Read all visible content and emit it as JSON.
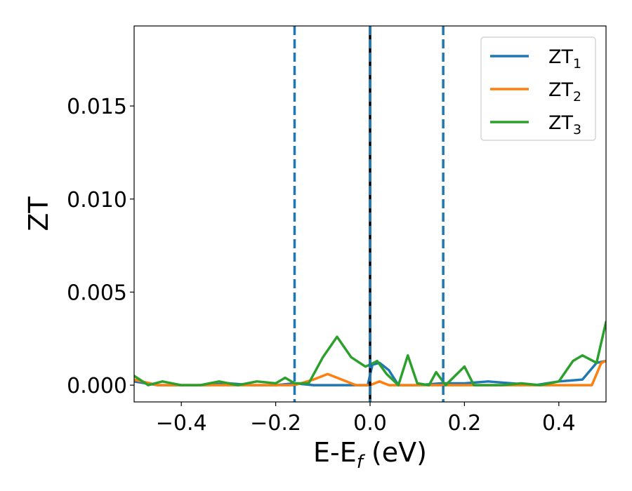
{
  "chart_data": {
    "type": "line",
    "xlabel": "E-E",
    "xlabel_subscript": "f",
    "xlabel_unit": "(eV)",
    "ylabel": "ZT",
    "xlim": [
      -0.5,
      0.5
    ],
    "ylim": [
      -0.0009,
      0.0193
    ],
    "xticks": [
      -0.4,
      -0.2,
      0.0,
      0.2,
      0.4
    ],
    "xtick_labels": [
      "−0.4",
      "−0.2",
      "0.0",
      "0.2",
      "0.4"
    ],
    "yticks": [
      0.0,
      0.005,
      0.01,
      0.015
    ],
    "ytick_labels": [
      "0.000",
      "0.005",
      "0.010",
      "0.015"
    ],
    "grid": false,
    "legend_position": "top-right",
    "vertical_lines": [
      {
        "x": -0.16,
        "style": "dashed",
        "color": "#1f77b4"
      },
      {
        "x": 0.0,
        "style": "solid",
        "color": "#000000"
      },
      {
        "x": 0.0,
        "style": "dashed",
        "color": "#1f77b4"
      },
      {
        "x": 0.155,
        "style": "dashed",
        "color": "#1f77b4"
      }
    ],
    "series": [
      {
        "name": "ZT",
        "name_subscript": "1",
        "color": "#1f77b4",
        "x": [
          -0.5,
          -0.45,
          -0.4,
          -0.35,
          -0.3,
          -0.25,
          -0.2,
          -0.16,
          -0.12,
          -0.08,
          -0.04,
          -0.005,
          0.005,
          0.02,
          0.04,
          0.06,
          0.1,
          0.15,
          0.2,
          0.25,
          0.3,
          0.35,
          0.4,
          0.45,
          0.48,
          0.5
        ],
        "y": [
          0.0002,
          0.0,
          0.0,
          0.0,
          0.0001,
          0.0,
          0.0,
          0.0001,
          0.0,
          0.0,
          0.0,
          0.0,
          0.0011,
          0.0012,
          0.0008,
          0.0,
          0.0,
          0.0001,
          0.0001,
          0.0002,
          0.0001,
          0.0,
          0.0002,
          0.0003,
          0.0012,
          0.0013
        ]
      },
      {
        "name": "ZT",
        "name_subscript": "2",
        "color": "#ff7f0e",
        "x": [
          -0.5,
          -0.45,
          -0.4,
          -0.35,
          -0.3,
          -0.25,
          -0.2,
          -0.16,
          -0.12,
          -0.09,
          -0.06,
          -0.03,
          0.0,
          0.02,
          0.04,
          0.06,
          0.1,
          0.15,
          0.2,
          0.25,
          0.3,
          0.35,
          0.4,
          0.45,
          0.47,
          0.49,
          0.5
        ],
        "y": [
          0.0003,
          0.0,
          0.0,
          0.0,
          0.0,
          0.0,
          0.0,
          0.0,
          0.0003,
          0.0006,
          0.0003,
          0.0,
          0.0,
          0.0002,
          0.0,
          0.0,
          0.0,
          0.0,
          0.0,
          0.0,
          0.0,
          0.0,
          0.0,
          0.0,
          0.0,
          0.0012,
          0.0013
        ]
      },
      {
        "name": "ZT",
        "name_subscript": "3",
        "color": "#2ca02c",
        "x": [
          -0.5,
          -0.47,
          -0.44,
          -0.4,
          -0.36,
          -0.32,
          -0.28,
          -0.24,
          -0.2,
          -0.18,
          -0.16,
          -0.13,
          -0.1,
          -0.07,
          -0.04,
          -0.01,
          0.0,
          0.015,
          0.035,
          0.06,
          0.08,
          0.1,
          0.125,
          0.14,
          0.16,
          0.18,
          0.2,
          0.22,
          0.25,
          0.28,
          0.32,
          0.36,
          0.4,
          0.43,
          0.45,
          0.48,
          0.5
        ],
        "y": [
          0.0005,
          0.0,
          0.0002,
          0.0,
          0.0,
          0.0002,
          0.0,
          0.0002,
          0.0001,
          0.0004,
          0.0001,
          0.0001,
          0.0015,
          0.0026,
          0.0015,
          0.001,
          0.0011,
          0.0013,
          0.0006,
          0.0,
          0.0016,
          0.0001,
          0.0,
          0.0007,
          0.0,
          0.0005,
          0.001,
          0.0,
          0.0,
          0.0,
          0.0001,
          0.0,
          0.0002,
          0.0013,
          0.0016,
          0.0012,
          0.0034
        ]
      }
    ]
  }
}
